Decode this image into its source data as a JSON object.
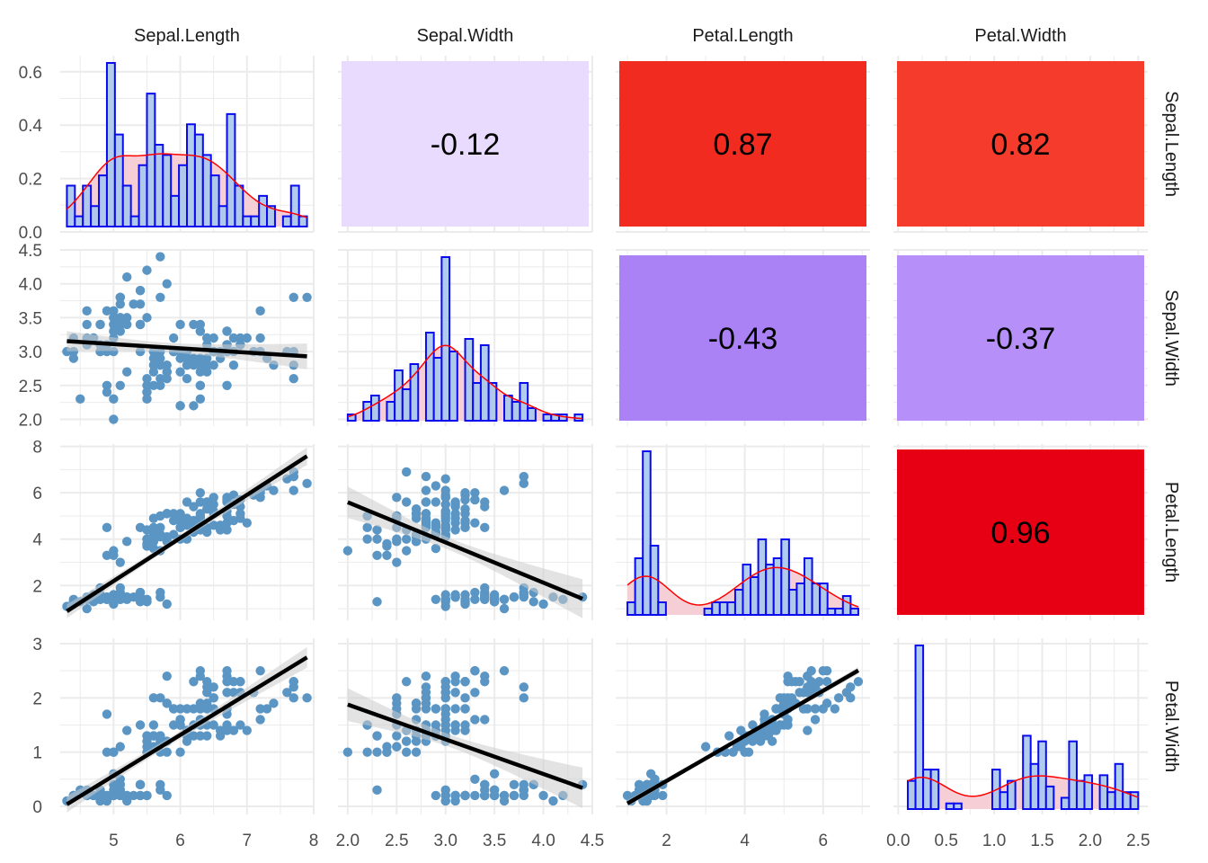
{
  "chart_data": {
    "type": "scatter",
    "variables": [
      "Sepal.Length",
      "Sepal.Width",
      "Petal.Length",
      "Petal.Width"
    ],
    "axes": [
      {
        "name": "Sepal.Length",
        "range": [
          4.2,
          8.0
        ],
        "ticks": [
          "5",
          "6",
          "7",
          "8"
        ],
        "tick_values": [
          5,
          6,
          7,
          8
        ]
      },
      {
        "name": "Sepal.Width",
        "range": [
          1.9,
          4.5
        ],
        "ticks": [
          "2.0",
          "2.5",
          "3.0",
          "3.5",
          "4.0",
          "4.5"
        ],
        "tick_values": [
          2.0,
          2.5,
          3.0,
          3.5,
          4.0,
          4.5
        ]
      },
      {
        "name": "Petal.Length",
        "range": [
          0.7,
          7.2
        ],
        "ticks": [
          "2",
          "4",
          "6"
        ],
        "tick_values": [
          2,
          4,
          6
        ]
      },
      {
        "name": "Petal.Width",
        "range": [
          -0.05,
          2.6
        ],
        "ticks": [
          "0.0",
          "0.5",
          "1.0",
          "1.5",
          "2.0",
          "2.5"
        ],
        "tick_values": [
          0.0,
          0.5,
          1.0,
          1.5,
          2.0,
          2.5
        ]
      }
    ],
    "row_y_axes": [
      {
        "range": [
          0.0,
          0.66
        ],
        "ticks": [
          "0.0",
          "0.2",
          "0.4",
          "0.6"
        ],
        "tick_values": [
          0.0,
          0.2,
          0.4,
          0.6
        ]
      },
      {
        "range": [
          1.9,
          4.5
        ],
        "ticks": [
          "2.0",
          "2.5",
          "3.0",
          "3.5",
          "4.0",
          "4.5"
        ],
        "tick_values": [
          2.0,
          2.5,
          3.0,
          3.5,
          4.0,
          4.5
        ]
      },
      {
        "range": [
          0.5,
          8.1
        ],
        "ticks": [
          "2",
          "4",
          "6",
          "8"
        ],
        "tick_values": [
          2,
          4,
          6,
          8
        ]
      },
      {
        "range": [
          -0.15,
          3.1
        ],
        "ticks": [
          "0",
          "1",
          "2",
          "3"
        ],
        "tick_values": [
          0,
          1,
          2,
          3
        ]
      }
    ],
    "correlations": [
      {
        "row": 0,
        "col": 1,
        "label": "-0.12",
        "value": -0.12,
        "color": "#e9dbfe"
      },
      {
        "row": 0,
        "col": 2,
        "label": "0.87",
        "value": 0.87,
        "color": "#f22b21"
      },
      {
        "row": 0,
        "col": 3,
        "label": "0.82",
        "value": 0.82,
        "color": "#f53c2c"
      },
      {
        "row": 1,
        "col": 2,
        "label": "-0.43",
        "value": -0.43,
        "color": "#aa82f6"
      },
      {
        "row": 1,
        "col": 3,
        "label": "-0.37",
        "value": -0.37,
        "color": "#b690f8"
      },
      {
        "row": 2,
        "col": 3,
        "label": "0.96",
        "value": 0.96,
        "color": "#e70014"
      }
    ],
    "observations": {
      "Sepal.Length": [
        5.1,
        4.9,
        4.7,
        4.6,
        5.0,
        5.4,
        4.6,
        5.0,
        4.4,
        4.9,
        5.4,
        4.8,
        4.8,
        4.3,
        5.8,
        5.7,
        5.4,
        5.1,
        5.7,
        5.1,
        5.4,
        5.1,
        4.6,
        5.1,
        4.8,
        5.0,
        5.0,
        5.2,
        5.2,
        4.7,
        4.8,
        5.4,
        5.2,
        5.5,
        4.9,
        5.0,
        5.5,
        4.9,
        4.4,
        5.1,
        5.0,
        4.5,
        4.4,
        5.0,
        5.1,
        4.8,
        5.1,
        4.6,
        5.3,
        5.0,
        7.0,
        6.4,
        6.9,
        5.5,
        6.5,
        5.7,
        6.3,
        4.9,
        6.6,
        5.2,
        5.0,
        5.9,
        6.0,
        6.1,
        5.6,
        6.7,
        5.6,
        5.8,
        6.2,
        5.6,
        5.9,
        6.1,
        6.3,
        6.1,
        6.4,
        6.6,
        6.8,
        6.7,
        6.0,
        5.7,
        5.5,
        5.5,
        5.8,
        6.0,
        5.4,
        6.0,
        6.7,
        6.3,
        5.6,
        5.5,
        5.5,
        6.1,
        5.8,
        5.0,
        5.6,
        5.7,
        5.7,
        6.2,
        5.1,
        5.7,
        6.3,
        5.8,
        7.1,
        6.3,
        6.5,
        7.6,
        4.9,
        7.3,
        6.7,
        7.2,
        6.5,
        6.4,
        6.8,
        5.7,
        5.8,
        6.4,
        6.5,
        7.7,
        7.7,
        6.0,
        6.9,
        5.6,
        7.7,
        6.3,
        6.7,
        7.2,
        6.2,
        6.1,
        6.4,
        7.2,
        7.4,
        7.9,
        6.4,
        6.3,
        6.1,
        7.7,
        6.3,
        6.4,
        6.0,
        6.9,
        6.7,
        6.9,
        5.8,
        6.8,
        6.7,
        6.7,
        6.3,
        6.5,
        6.2,
        5.9
      ],
      "Sepal.Width": [
        3.5,
        3.0,
        3.2,
        3.1,
        3.6,
        3.9,
        3.4,
        3.4,
        2.9,
        3.1,
        3.7,
        3.4,
        3.0,
        3.0,
        4.0,
        4.4,
        3.9,
        3.5,
        3.8,
        3.8,
        3.4,
        3.7,
        3.6,
        3.3,
        3.4,
        3.0,
        3.4,
        3.5,
        3.4,
        3.2,
        3.1,
        3.4,
        4.1,
        4.2,
        3.1,
        3.2,
        3.5,
        3.6,
        3.0,
        3.4,
        3.5,
        2.3,
        3.2,
        3.5,
        3.8,
        3.0,
        3.8,
        3.2,
        3.7,
        3.3,
        3.2,
        3.2,
        3.1,
        2.3,
        2.8,
        2.8,
        3.3,
        2.4,
        2.9,
        2.7,
        2.0,
        3.0,
        2.2,
        2.9,
        2.9,
        3.1,
        3.0,
        2.7,
        2.2,
        2.5,
        3.2,
        2.8,
        2.5,
        2.8,
        2.9,
        3.0,
        2.8,
        3.0,
        2.9,
        2.6,
        2.4,
        2.4,
        2.7,
        2.7,
        3.0,
        3.4,
        3.1,
        2.3,
        3.0,
        2.5,
        2.6,
        3.0,
        2.6,
        2.3,
        2.7,
        3.0,
        2.9,
        2.9,
        2.5,
        2.8,
        3.3,
        2.7,
        3.0,
        2.9,
        3.0,
        3.0,
        2.5,
        2.9,
        2.5,
        3.6,
        3.2,
        2.7,
        3.0,
        2.5,
        2.8,
        3.2,
        3.0,
        3.8,
        2.6,
        2.2,
        3.2,
        2.8,
        2.8,
        2.7,
        3.3,
        3.2,
        2.8,
        3.0,
        2.8,
        3.0,
        2.8,
        3.8,
        2.8,
        2.8,
        2.6,
        3.0,
        3.4,
        3.1,
        3.0,
        3.1,
        3.1,
        3.1,
        2.7,
        3.2,
        3.3,
        3.0,
        2.5,
        3.0,
        3.4,
        3.0
      ],
      "Petal.Length": [
        1.4,
        1.4,
        1.3,
        1.5,
        1.4,
        1.7,
        1.4,
        1.5,
        1.4,
        1.5,
        1.5,
        1.6,
        1.4,
        1.1,
        1.2,
        1.5,
        1.3,
        1.4,
        1.7,
        1.5,
        1.7,
        1.5,
        1.0,
        1.7,
        1.9,
        1.6,
        1.6,
        1.5,
        1.4,
        1.6,
        1.6,
        1.5,
        1.5,
        1.4,
        1.5,
        1.2,
        1.3,
        1.4,
        1.3,
        1.5,
        1.3,
        1.3,
        1.3,
        1.6,
        1.9,
        1.4,
        1.6,
        1.4,
        1.5,
        1.4,
        4.7,
        4.5,
        4.9,
        4.0,
        4.6,
        4.5,
        4.7,
        3.3,
        4.6,
        3.9,
        3.5,
        4.2,
        4.0,
        4.7,
        3.6,
        4.4,
        4.5,
        4.1,
        4.5,
        3.9,
        4.8,
        4.0,
        4.9,
        4.7,
        4.3,
        4.4,
        4.8,
        5.0,
        4.5,
        3.5,
        3.8,
        3.7,
        3.9,
        5.1,
        4.5,
        4.5,
        4.7,
        4.4,
        4.1,
        4.0,
        4.4,
        4.6,
        4.0,
        3.3,
        4.2,
        4.2,
        4.2,
        4.3,
        3.0,
        4.1,
        6.0,
        5.1,
        5.9,
        5.6,
        5.8,
        6.6,
        4.5,
        6.3,
        5.8,
        6.1,
        5.1,
        5.3,
        5.5,
        5.0,
        5.1,
        5.3,
        5.5,
        6.7,
        6.9,
        5.0,
        5.7,
        4.9,
        6.7,
        4.9,
        5.7,
        6.0,
        4.8,
        4.9,
        5.6,
        5.8,
        6.1,
        6.4,
        5.6,
        5.1,
        5.6,
        6.1,
        5.6,
        5.5,
        4.8,
        5.4,
        5.6,
        5.1,
        5.1,
        5.9,
        5.7,
        5.2,
        5.0,
        5.2,
        5.4,
        5.1
      ],
      "Petal.Width": [
        0.2,
        0.2,
        0.2,
        0.2,
        0.2,
        0.4,
        0.3,
        0.2,
        0.2,
        0.1,
        0.2,
        0.2,
        0.1,
        0.1,
        0.2,
        0.4,
        0.4,
        0.3,
        0.3,
        0.3,
        0.2,
        0.4,
        0.2,
        0.5,
        0.2,
        0.2,
        0.4,
        0.2,
        0.2,
        0.2,
        0.2,
        0.4,
        0.1,
        0.2,
        0.2,
        0.2,
        0.2,
        0.1,
        0.2,
        0.2,
        0.3,
        0.3,
        0.2,
        0.6,
        0.4,
        0.3,
        0.2,
        0.2,
        0.2,
        0.2,
        1.4,
        1.5,
        1.5,
        1.3,
        1.5,
        1.3,
        1.6,
        1.0,
        1.3,
        1.4,
        1.0,
        1.5,
        1.0,
        1.4,
        1.3,
        1.4,
        1.5,
        1.0,
        1.5,
        1.1,
        1.8,
        1.3,
        1.5,
        1.2,
        1.3,
        1.4,
        1.4,
        1.7,
        1.5,
        1.0,
        1.1,
        1.0,
        1.2,
        1.6,
        1.5,
        1.6,
        1.5,
        1.3,
        1.3,
        1.3,
        1.2,
        1.4,
        1.2,
        1.0,
        1.3,
        1.2,
        1.3,
        1.3,
        1.1,
        1.3,
        2.5,
        1.9,
        2.1,
        1.8,
        2.2,
        2.1,
        1.7,
        1.8,
        1.8,
        2.5,
        2.0,
        1.9,
        2.1,
        2.0,
        2.4,
        2.3,
        1.8,
        2.2,
        2.3,
        1.5,
        2.3,
        2.0,
        2.0,
        1.8,
        2.1,
        1.8,
        1.8,
        1.8,
        2.1,
        1.6,
        1.9,
        2.0,
        2.2,
        1.5,
        1.4,
        2.3,
        2.4,
        1.8,
        1.8,
        2.1,
        2.4,
        2.3,
        1.9,
        2.3,
        2.5,
        2.3,
        1.9,
        2.0,
        2.3,
        1.8
      ]
    },
    "diagonal": "histogram + density",
    "lower": "scatter + linear fit with confidence band",
    "upper": "correlation coefficient tiles",
    "grid": true,
    "colors": {
      "point": "#5a95c4",
      "hist_fill": "#a8c8ec",
      "hist_stroke": "#0a0aef",
      "density_line": "#ff0000",
      "density_fill": "#f6cfd6",
      "fit_line": "#000000",
      "band": "#cccccc",
      "grid": "#ebebeb"
    }
  }
}
